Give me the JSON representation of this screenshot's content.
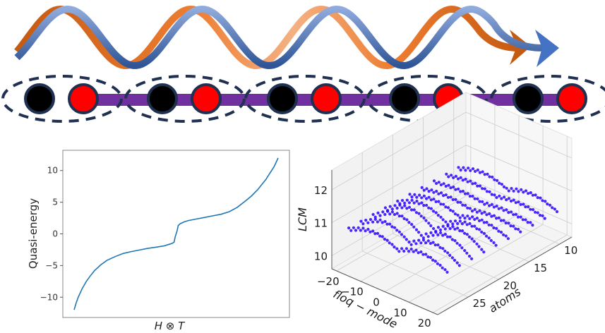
{
  "figure": {
    "description": "Floquet chain schematic with quasi-energy spectrum and 3D LCM scatter",
    "colors": {
      "wave_blue": "#4472c4",
      "wave_blue_light": "#8faadc",
      "wave_orange": "#d2691e",
      "wave_orange_light": "#f4b183",
      "atom_black": "#000000",
      "atom_red": "#ff0000",
      "atom_outline": "#1f3050",
      "bond_purple": "#7030a0",
      "cell_dash": "#1f3050",
      "curve_blue": "#1f77b4",
      "scatter_blue": "#2a00ff"
    }
  },
  "schematic": {
    "unit_cells": 5,
    "atoms": [
      {
        "type": "A",
        "color": "black"
      },
      {
        "type": "B",
        "color": "red"
      },
      {
        "type": "A",
        "color": "black"
      },
      {
        "type": "B",
        "color": "red"
      },
      {
        "type": "A",
        "color": "black"
      },
      {
        "type": "B",
        "color": "red"
      },
      {
        "type": "A",
        "color": "black"
      },
      {
        "type": "B",
        "color": "red"
      },
      {
        "type": "A",
        "color": "black"
      },
      {
        "type": "B",
        "color": "red"
      }
    ],
    "waves": [
      {
        "name": "blue-wave",
        "periods": 4,
        "arrow": true
      },
      {
        "name": "orange-wave",
        "periods": 4,
        "arrow": true
      }
    ]
  },
  "chart_data": [
    {
      "type": "line",
      "title": "",
      "xlabel": "H ⊗ T",
      "ylabel": "Quasi-energy",
      "ylim": [
        -13.2,
        13.2
      ],
      "xlim": [
        0,
        1
      ],
      "yticks": [
        -10,
        -5,
        0,
        5,
        10
      ],
      "ytick_labels": [
        "−10",
        "−5",
        "0",
        "5",
        "10"
      ],
      "xticks": [],
      "grid": false,
      "series": [
        {
          "name": "quasi-energy",
          "x": [
            0.0,
            0.01,
            0.02,
            0.04,
            0.06,
            0.08,
            0.1,
            0.13,
            0.16,
            0.2,
            0.24,
            0.28,
            0.32,
            0.36,
            0.4,
            0.44,
            0.46,
            0.48,
            0.49,
            0.495,
            0.5,
            0.505,
            0.51,
            0.52,
            0.54,
            0.56,
            0.6,
            0.64,
            0.68,
            0.72,
            0.76,
            0.8,
            0.84,
            0.87,
            0.9,
            0.92,
            0.94,
            0.96,
            0.98,
            0.99,
            1.0
          ],
          "values": [
            -12.0,
            -10.9,
            -10.0,
            -8.6,
            -7.5,
            -6.6,
            -5.8,
            -4.9,
            -4.2,
            -3.6,
            -3.1,
            -2.8,
            -2.55,
            -2.3,
            -2.1,
            -1.9,
            -1.7,
            -1.5,
            -1.3,
            -0.5,
            0.0,
            0.5,
            1.3,
            1.6,
            1.9,
            2.1,
            2.35,
            2.6,
            2.85,
            3.1,
            3.5,
            4.2,
            5.2,
            6.0,
            7.0,
            7.8,
            8.6,
            9.6,
            10.6,
            11.3,
            12.0
          ]
        }
      ]
    },
    {
      "type": "scatter",
      "projection": "3d",
      "title": "",
      "xlabel": "floq − mode",
      "ylabel": "atoms",
      "zlabel": "LCM",
      "xlim": [
        -22,
        22
      ],
      "ylim": [
        8,
        30
      ],
      "zlim": [
        9.6,
        12.6
      ],
      "xticks": [
        -20,
        -10,
        0,
        10,
        20
      ],
      "xtick_labels": [
        "−20",
        "−10",
        "0",
        "10",
        "20"
      ],
      "yticks": [
        10,
        15,
        20,
        25
      ],
      "ytick_labels": [
        "10",
        "15",
        "20",
        "25"
      ],
      "zticks": [
        10,
        11,
        12
      ],
      "ztick_labels": [
        "10",
        "11",
        "12"
      ],
      "grid": true,
      "series": [
        {
          "name": "LCM",
          "description": "Surface of points: LCM ≈ 10.4–11.3 over floq-mode −20..20 and atoms 10..28 (even counts), two raised ridges separated by a gap near floq-mode 0",
          "floq_modes": [
            -20,
            -18,
            -16,
            -14,
            -12,
            -10,
            -8,
            -6,
            -4,
            -2,
            0,
            2,
            4,
            6,
            8,
            10,
            12,
            14,
            16,
            18,
            20
          ],
          "atoms": [
            10,
            12,
            14,
            16,
            18,
            20,
            22,
            24,
            26,
            28
          ],
          "lcm_base": 10.6,
          "lcm_amplitude": 0.35
        }
      ]
    }
  ]
}
